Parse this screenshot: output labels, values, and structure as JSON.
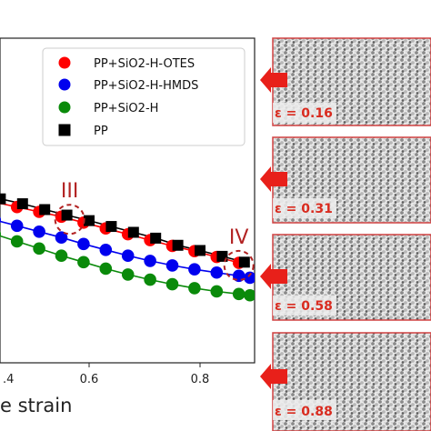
{
  "chart_data": {
    "type": "scatter",
    "xlabel": "e strain",
    "xlim": [
      0.35,
      0.9
    ],
    "ylim": [
      0.0,
      1.0
    ],
    "xticks": [
      "0.6",
      "0.8"
    ],
    "xtick_left_partial": ".4",
    "legend_position": "top-right",
    "series": [
      {
        "name": "PP+SiO2-H-OTES",
        "color": "#ff0000",
        "marker": "circle",
        "points": [
          [
            0.35,
            0.52
          ],
          [
            0.39,
            0.51
          ],
          [
            0.43,
            0.495
          ],
          [
            0.47,
            0.48
          ],
          [
            0.51,
            0.465
          ],
          [
            0.55,
            0.45
          ],
          [
            0.59,
            0.432
          ],
          [
            0.63,
            0.414
          ],
          [
            0.67,
            0.396
          ],
          [
            0.71,
            0.378
          ],
          [
            0.75,
            0.36
          ],
          [
            0.79,
            0.344
          ],
          [
            0.83,
            0.326
          ],
          [
            0.87,
            0.308
          ]
        ]
      },
      {
        "name": "PP+SiO2-H-HMDS",
        "color": "#0000ee",
        "marker": "circle",
        "points": [
          [
            0.35,
            0.47
          ],
          [
            0.39,
            0.458
          ],
          [
            0.43,
            0.44
          ],
          [
            0.47,
            0.422
          ],
          [
            0.51,
            0.404
          ],
          [
            0.55,
            0.386
          ],
          [
            0.59,
            0.366
          ],
          [
            0.63,
            0.348
          ],
          [
            0.67,
            0.33
          ],
          [
            0.71,
            0.314
          ],
          [
            0.75,
            0.3
          ],
          [
            0.79,
            0.288
          ],
          [
            0.83,
            0.278
          ],
          [
            0.87,
            0.268
          ],
          [
            0.89,
            0.262
          ]
        ]
      },
      {
        "name": "PP+SiO2-H",
        "color": "#0a8a0a",
        "marker": "circle",
        "points": [
          [
            0.35,
            0.44
          ],
          [
            0.39,
            0.418
          ],
          [
            0.43,
            0.396
          ],
          [
            0.47,
            0.374
          ],
          [
            0.51,
            0.352
          ],
          [
            0.55,
            0.33
          ],
          [
            0.59,
            0.31
          ],
          [
            0.63,
            0.29
          ],
          [
            0.67,
            0.272
          ],
          [
            0.71,
            0.256
          ],
          [
            0.75,
            0.242
          ],
          [
            0.79,
            0.23
          ],
          [
            0.83,
            0.22
          ],
          [
            0.87,
            0.212
          ],
          [
            0.89,
            0.208
          ]
        ]
      },
      {
        "name": "PP",
        "color": "#000000",
        "marker": "square",
        "points": [
          [
            0.36,
            0.54
          ],
          [
            0.4,
            0.52
          ],
          [
            0.44,
            0.505
          ],
          [
            0.48,
            0.49
          ],
          [
            0.52,
            0.472
          ],
          [
            0.56,
            0.455
          ],
          [
            0.6,
            0.438
          ],
          [
            0.64,
            0.42
          ],
          [
            0.68,
            0.402
          ],
          [
            0.72,
            0.384
          ],
          [
            0.76,
            0.362
          ],
          [
            0.8,
            0.346
          ],
          [
            0.84,
            0.328
          ],
          [
            0.88,
            0.31
          ]
        ]
      }
    ],
    "annotations": [
      {
        "label": "III",
        "x": 0.565,
        "y": 0.442
      },
      {
        "label": "IV",
        "x": 0.87,
        "y": 0.3
      }
    ]
  },
  "snapshots": [
    {
      "label": "ε = 0.16"
    },
    {
      "label": "ε = 0.31"
    },
    {
      "label": "ε = 0.58"
    },
    {
      "label": "ε = 0.88"
    }
  ],
  "colors": {
    "arrow": "#e8201a",
    "snapshot_border": "#d04040",
    "label": "#d92b1f"
  }
}
